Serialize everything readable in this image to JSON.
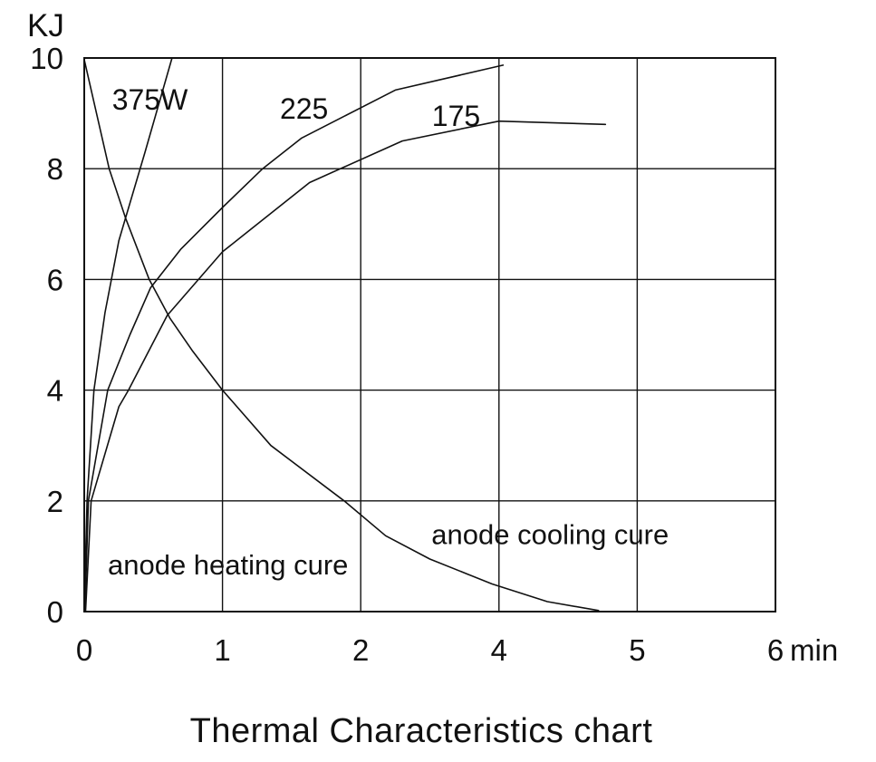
{
  "page": {
    "background_color": "#ffffff",
    "line_color": "#111111"
  },
  "chart_data": {
    "type": "line",
    "title": "Thermal Characteristics chart",
    "grid": true,
    "x_axis": {
      "unit_label": "min",
      "tick_labels": [
        "0",
        "1",
        "2",
        "4",
        "5",
        "6"
      ],
      "tick_positions": [
        0,
        1,
        2,
        3,
        4,
        5
      ],
      "note": "6 evenly spaced vertical gridlines; printed tick labels skip the value 3"
    },
    "y_axis": {
      "unit_label": "KJ",
      "tick_labels": [
        "10",
        "8",
        "6",
        "4",
        "2",
        "0"
      ],
      "tick_values": [
        10,
        8,
        6,
        4,
        2,
        0
      ],
      "range": [
        0,
        10
      ]
    },
    "series": [
      {
        "id": "heating-375",
        "name": "anode heating curve 375W",
        "points": [
          [
            0.0,
            0.02
          ],
          [
            0.02,
            2.0
          ],
          [
            0.07,
            4.0
          ],
          [
            0.15,
            5.4
          ],
          [
            0.25,
            6.7
          ],
          [
            0.44,
            8.3
          ],
          [
            0.635,
            10.0
          ]
        ]
      },
      {
        "id": "heating-225",
        "name": "anode heating curve 225",
        "points": [
          [
            0.005,
            0.02
          ],
          [
            0.03,
            2.0
          ],
          [
            0.17,
            4.0
          ],
          [
            0.33,
            5.0
          ],
          [
            0.48,
            5.85
          ],
          [
            0.7,
            6.55
          ],
          [
            1.0,
            7.3
          ],
          [
            1.29,
            8.0
          ],
          [
            1.57,
            8.55
          ],
          [
            2.25,
            9.42
          ],
          [
            3.03,
            9.87
          ]
        ]
      },
      {
        "id": "heating-175",
        "name": "anode heating curve 175",
        "points": [
          [
            0.01,
            0.02
          ],
          [
            0.05,
            2.0
          ],
          [
            0.25,
            3.7
          ],
          [
            0.32,
            4.0
          ],
          [
            0.6,
            5.35
          ],
          [
            1.0,
            6.5
          ],
          [
            1.63,
            7.75
          ],
          [
            2.3,
            8.5
          ],
          [
            3.0,
            8.86
          ],
          [
            3.77,
            8.8
          ]
        ]
      },
      {
        "id": "cooling",
        "name": "anode cooling curve",
        "points": [
          [
            0.0,
            9.97
          ],
          [
            0.18,
            8.0
          ],
          [
            0.3,
            7.1
          ],
          [
            0.47,
            6.0
          ],
          [
            0.62,
            5.3
          ],
          [
            0.78,
            4.72
          ],
          [
            1.0,
            4.0
          ],
          [
            1.35,
            3.0
          ],
          [
            1.88,
            2.0
          ],
          [
            2.18,
            1.37
          ],
          [
            2.5,
            0.95
          ],
          [
            2.78,
            0.67
          ],
          [
            2.95,
            0.5
          ],
          [
            3.35,
            0.18
          ],
          [
            3.72,
            0.02
          ]
        ]
      }
    ],
    "curve_labels": [
      {
        "id": "375w",
        "text": "375W",
        "pos": 0.475,
        "value": 9.26
      },
      {
        "id": "225",
        "text": "225",
        "pos": 1.59,
        "value": 9.1
      },
      {
        "id": "175",
        "text": "175",
        "pos": 2.69,
        "value": 8.97
      }
    ],
    "annotations": [
      {
        "id": "anode-heating",
        "text": "anode heating cure",
        "pos": 1.04,
        "value": 0.85
      },
      {
        "id": "anode-cooling",
        "text": "anode cooling cure",
        "pos": 3.37,
        "value": 1.4
      }
    ]
  }
}
